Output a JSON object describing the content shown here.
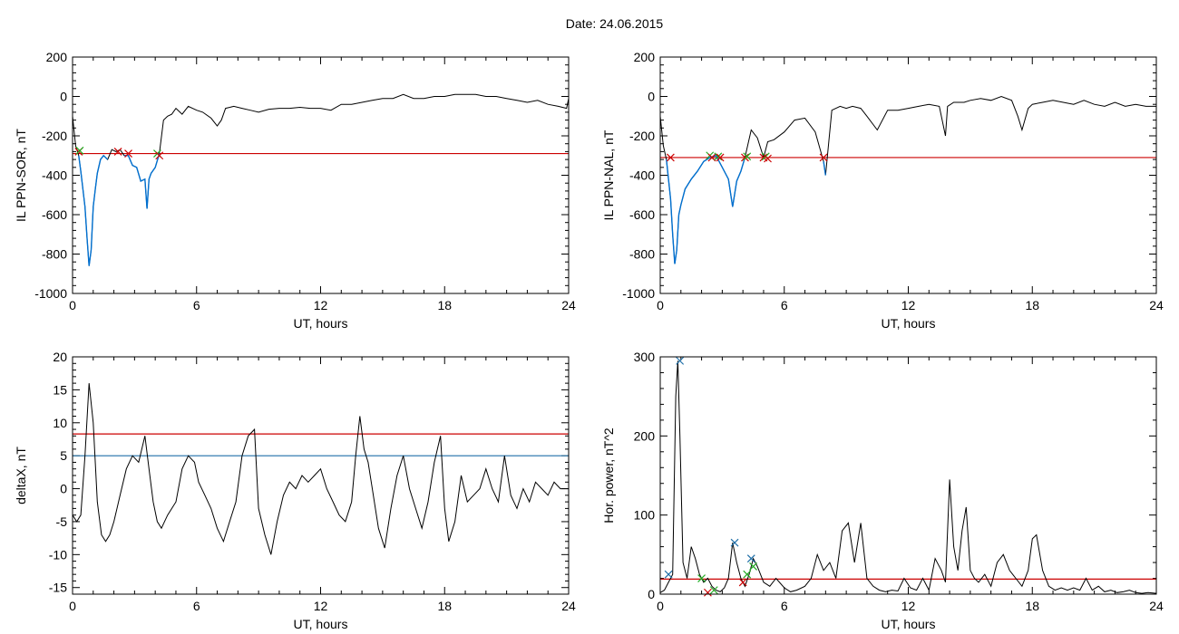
{
  "title": "Date:  24.06.2015",
  "colors": {
    "trace": "#000000",
    "highlight": "#0070d0",
    "threshold": "#cc0000",
    "reference": "#1f6fa8",
    "marker_red": "#cc0000",
    "marker_green": "#22aa22",
    "marker_blue": "#1f6fa8"
  },
  "chart_data": [
    {
      "id": "il-sor",
      "type": "line",
      "xlabel": "UT, hours",
      "ylabel": "IL PPN-SOR, nT",
      "xlim": [
        0,
        24
      ],
      "ylim": [
        -1000,
        200
      ],
      "xticks": [
        0,
        6,
        12,
        18,
        24
      ],
      "yticks": [
        200,
        0,
        -200,
        -400,
        -600,
        -800,
        -1000
      ],
      "threshold": -290,
      "highlight_range": [
        0.2,
        4.3
      ],
      "series": [
        {
          "x": [
            0,
            0.15,
            0.3,
            0.4,
            0.5,
            0.6,
            0.7,
            0.8,
            0.9,
            1.0,
            1.1,
            1.2,
            1.35,
            1.5,
            1.7,
            1.9,
            2.1,
            2.3,
            2.5,
            2.7,
            2.9,
            3.1,
            3.3,
            3.5,
            3.6,
            3.7,
            3.8,
            4.0,
            4.2,
            4.4,
            4.6,
            4.8,
            5.0,
            5.3,
            5.6,
            6.0,
            6.3,
            6.7,
            7.0,
            7.2,
            7.4,
            7.8,
            8.2,
            8.6,
            9.0,
            9.5,
            10.0,
            10.5,
            11.0,
            11.5,
            12.0,
            12.5,
            13.0,
            13.5,
            14.0,
            14.5,
            15.0,
            15.5,
            16.0,
            16.5,
            17.0,
            17.5,
            18.0,
            18.5,
            19.0,
            19.5,
            20.0,
            20.5,
            21.0,
            21.5,
            22.0,
            22.5,
            23.0,
            23.5,
            23.9,
            24.0
          ],
          "y": [
            -100,
            -250,
            -300,
            -380,
            -470,
            -560,
            -720,
            -860,
            -780,
            -560,
            -470,
            -390,
            -320,
            -300,
            -320,
            -270,
            -280,
            -270,
            -300,
            -300,
            -350,
            -360,
            -430,
            -420,
            -570,
            -420,
            -390,
            -360,
            -290,
            -120,
            -100,
            -90,
            -60,
            -90,
            -50,
            -70,
            -80,
            -110,
            -150,
            -120,
            -60,
            -50,
            -60,
            -70,
            -80,
            -65,
            -60,
            -60,
            -55,
            -60,
            -60,
            -70,
            -40,
            -40,
            -30,
            -20,
            -10,
            -10,
            10,
            -10,
            -10,
            0,
            0,
            10,
            10,
            10,
            0,
            0,
            -10,
            -20,
            -30,
            -20,
            -40,
            -50,
            -60,
            -10
          ]
        }
      ],
      "markers": [
        {
          "x": 0.3,
          "y": -280,
          "color": "red"
        },
        {
          "x": 0.35,
          "y": -275,
          "color": "green"
        },
        {
          "x": 2.2,
          "y": -280,
          "color": "red"
        },
        {
          "x": 2.7,
          "y": -290,
          "color": "red"
        },
        {
          "x": 4.1,
          "y": -290,
          "color": "green"
        },
        {
          "x": 4.2,
          "y": -300,
          "color": "red"
        }
      ]
    },
    {
      "id": "il-nal",
      "type": "line",
      "xlabel": "UT, hours",
      "ylabel": "IL PPN-NAL, nT",
      "xlim": [
        0,
        24
      ],
      "ylim": [
        -1000,
        200
      ],
      "xticks": [
        0,
        6,
        12,
        18,
        24
      ],
      "yticks": [
        200,
        0,
        -200,
        -400,
        -600,
        -800,
        -1000
      ],
      "threshold": -310,
      "highlight_range": [
        0.2,
        8.0
      ],
      "series": [
        {
          "x": [
            0,
            0.15,
            0.3,
            0.4,
            0.5,
            0.6,
            0.7,
            0.8,
            0.9,
            1.0,
            1.2,
            1.5,
            1.8,
            2.1,
            2.4,
            2.7,
            3.0,
            3.3,
            3.5,
            3.7,
            3.9,
            4.1,
            4.4,
            4.7,
            5.0,
            5.2,
            5.5,
            6.0,
            6.5,
            7.0,
            7.5,
            7.9,
            8.0,
            8.3,
            8.7,
            9.0,
            9.3,
            9.7,
            10.0,
            10.5,
            11.0,
            11.5,
            12.0,
            12.5,
            13.0,
            13.5,
            13.8,
            13.9,
            14.2,
            14.7,
            15.0,
            15.5,
            16.0,
            16.5,
            17.0,
            17.3,
            17.5,
            17.8,
            18.0,
            18.5,
            19.0,
            19.5,
            20.0,
            20.5,
            21.0,
            21.5,
            22.0,
            22.5,
            23.0,
            23.5,
            24.0
          ],
          "y": [
            -100,
            -250,
            -320,
            -420,
            -520,
            -700,
            -850,
            -780,
            -600,
            -550,
            -470,
            -420,
            -380,
            -330,
            -310,
            -300,
            -360,
            -420,
            -560,
            -430,
            -380,
            -310,
            -170,
            -210,
            -310,
            -230,
            -220,
            -180,
            -120,
            -110,
            -180,
            -330,
            -400,
            -70,
            -50,
            -60,
            -50,
            -60,
            -100,
            -170,
            -70,
            -70,
            -60,
            -50,
            -40,
            -50,
            -200,
            -50,
            -30,
            -30,
            -20,
            -10,
            -20,
            0,
            -20,
            -100,
            -170,
            -60,
            -40,
            -30,
            -20,
            -30,
            -40,
            -20,
            -40,
            -50,
            -30,
            -50,
            -40,
            -50,
            -50
          ]
        }
      ],
      "markers": [
        {
          "x": 0.5,
          "y": -310,
          "color": "red"
        },
        {
          "x": 2.4,
          "y": -300,
          "color": "green"
        },
        {
          "x": 2.5,
          "y": -310,
          "color": "red"
        },
        {
          "x": 2.8,
          "y": -305,
          "color": "green"
        },
        {
          "x": 2.9,
          "y": -310,
          "color": "red"
        },
        {
          "x": 4.1,
          "y": -310,
          "color": "red"
        },
        {
          "x": 4.2,
          "y": -305,
          "color": "green"
        },
        {
          "x": 5.0,
          "y": -310,
          "color": "red"
        },
        {
          "x": 5.1,
          "y": -305,
          "color": "green"
        },
        {
          "x": 5.2,
          "y": -315,
          "color": "red"
        },
        {
          "x": 7.9,
          "y": -310,
          "color": "red"
        }
      ]
    },
    {
      "id": "deltax",
      "type": "line",
      "xlabel": "UT, hours",
      "ylabel": "deltaX, nT",
      "xlim": [
        0,
        24
      ],
      "ylim": [
        -16,
        20
      ],
      "xticks": [
        0,
        6,
        12,
        18,
        24
      ],
      "yticks": [
        20,
        15,
        10,
        5,
        0,
        -5,
        -10,
        -15
      ],
      "threshold": 8.3,
      "reference": 5.0,
      "series": [
        {
          "x": [
            0,
            0.2,
            0.4,
            0.6,
            0.8,
            1.0,
            1.2,
            1.4,
            1.6,
            1.8,
            2.0,
            2.3,
            2.6,
            2.9,
            3.2,
            3.5,
            3.7,
            3.9,
            4.1,
            4.3,
            4.6,
            5.0,
            5.3,
            5.6,
            5.9,
            6.1,
            6.4,
            6.7,
            7.0,
            7.3,
            7.6,
            7.9,
            8.2,
            8.5,
            8.8,
            9.0,
            9.3,
            9.6,
            9.9,
            10.2,
            10.5,
            10.8,
            11.1,
            11.4,
            11.7,
            12.0,
            12.3,
            12.6,
            12.9,
            13.2,
            13.5,
            13.7,
            13.9,
            14.1,
            14.3,
            14.5,
            14.8,
            15.1,
            15.4,
            15.7,
            16.0,
            16.3,
            16.6,
            16.9,
            17.2,
            17.5,
            17.8,
            18.0,
            18.2,
            18.5,
            18.8,
            19.1,
            19.4,
            19.7,
            20.0,
            20.3,
            20.6,
            20.9,
            21.2,
            21.5,
            21.8,
            22.1,
            22.4,
            22.7,
            23.0,
            23.3,
            23.6,
            24.0
          ],
          "y": [
            -4,
            -5,
            -4,
            5,
            16,
            10,
            -2,
            -7,
            -8,
            -7,
            -5,
            -1,
            3,
            5,
            4,
            8,
            3,
            -2,
            -5,
            -6,
            -4,
            -2,
            3,
            5,
            4,
            1,
            -1,
            -3,
            -6,
            -8,
            -5,
            -2,
            5,
            8,
            9,
            -3,
            -7,
            -10,
            -5,
            -1,
            1,
            0,
            2,
            1,
            2,
            3,
            0,
            -2,
            -4,
            -5,
            -2,
            5,
            11,
            6,
            4,
            0,
            -6,
            -9,
            -3,
            2,
            5,
            0,
            -3,
            -6,
            -2,
            4,
            8,
            -3,
            -8,
            -5,
            2,
            -2,
            -1,
            0,
            3,
            0,
            -2,
            5,
            -1,
            -3,
            0,
            -2,
            1,
            0,
            -1,
            1,
            0,
            0
          ]
        }
      ]
    },
    {
      "id": "hor-power",
      "type": "line",
      "xlabel": "UT, hours",
      "ylabel": "Hor. power, nT^2",
      "xlim": [
        0,
        24
      ],
      "ylim": [
        0,
        300
      ],
      "xticks": [
        0,
        6,
        12,
        18,
        24
      ],
      "yticks": [
        300,
        200,
        100,
        0
      ],
      "threshold": 19,
      "series": [
        {
          "x": [
            0,
            0.2,
            0.4,
            0.6,
            0.75,
            0.85,
            0.95,
            1.1,
            1.3,
            1.5,
            1.7,
            1.9,
            2.1,
            2.3,
            2.5,
            2.7,
            2.9,
            3.1,
            3.3,
            3.5,
            3.7,
            3.9,
            4.1,
            4.3,
            4.5,
            4.7,
            5.0,
            5.3,
            5.6,
            6.0,
            6.3,
            6.6,
            7.0,
            7.3,
            7.6,
            7.9,
            8.2,
            8.5,
            8.8,
            9.1,
            9.4,
            9.7,
            10.0,
            10.3,
            10.6,
            10.9,
            11.2,
            11.5,
            11.8,
            12.1,
            12.4,
            12.7,
            13.0,
            13.3,
            13.6,
            13.8,
            13.9,
            14.0,
            14.2,
            14.4,
            14.6,
            14.8,
            15.0,
            15.2,
            15.4,
            15.7,
            16.0,
            16.3,
            16.6,
            16.9,
            17.2,
            17.5,
            17.8,
            18.0,
            18.2,
            18.5,
            18.8,
            19.1,
            19.4,
            19.7,
            20.0,
            20.3,
            20.6,
            20.9,
            21.2,
            21.5,
            21.8,
            22.1,
            22.4,
            22.7,
            23.0,
            23.3,
            23.6,
            24.0
          ],
          "y": [
            2,
            5,
            15,
            25,
            250,
            295,
            200,
            40,
            20,
            60,
            45,
            25,
            15,
            20,
            10,
            5,
            3,
            8,
            20,
            65,
            40,
            20,
            10,
            25,
            45,
            35,
            15,
            10,
            20,
            8,
            3,
            5,
            10,
            20,
            50,
            30,
            40,
            20,
            80,
            90,
            40,
            90,
            20,
            10,
            5,
            3,
            5,
            4,
            20,
            8,
            5,
            20,
            5,
            45,
            30,
            15,
            80,
            145,
            60,
            30,
            80,
            110,
            30,
            20,
            15,
            25,
            10,
            40,
            50,
            30,
            20,
            10,
            30,
            70,
            75,
            30,
            10,
            5,
            8,
            5,
            8,
            5,
            20,
            5,
            10,
            3,
            5,
            2,
            3,
            5,
            2,
            1,
            2,
            1
          ]
        }
      ],
      "markers": [
        {
          "x": 0.4,
          "y": 25,
          "color": "blue"
        },
        {
          "x": 0.95,
          "y": 295,
          "color": "blue"
        },
        {
          "x": 2.0,
          "y": 20,
          "color": "green"
        },
        {
          "x": 2.3,
          "y": 2,
          "color": "red"
        },
        {
          "x": 2.6,
          "y": 5,
          "color": "green"
        },
        {
          "x": 3.6,
          "y": 65,
          "color": "blue"
        },
        {
          "x": 4.0,
          "y": 15,
          "color": "red"
        },
        {
          "x": 4.2,
          "y": 25,
          "color": "green"
        },
        {
          "x": 4.4,
          "y": 45,
          "color": "blue"
        },
        {
          "x": 4.5,
          "y": 35,
          "color": "green"
        }
      ]
    }
  ]
}
